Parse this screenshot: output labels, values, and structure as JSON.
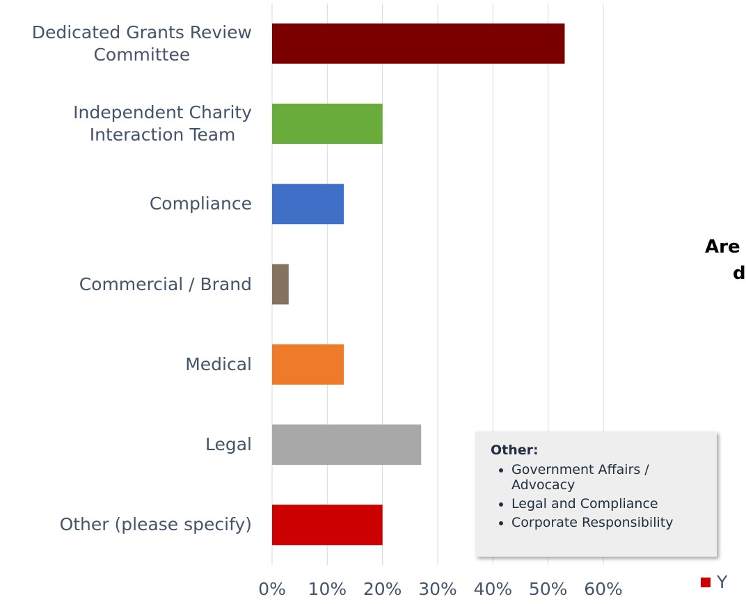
{
  "chart_data": {
    "type": "bar",
    "orientation": "horizontal",
    "categories": [
      "Dedicated Grants Review\nCommittee",
      "Independent Charity\nInteraction Team",
      "Compliance",
      "Commercial / Brand",
      "Medical",
      "Legal",
      "Other (please specify)"
    ],
    "values": [
      53,
      20,
      13,
      3,
      13,
      27,
      20
    ],
    "colors": [
      "#7a0000",
      "#6aac3c",
      "#3f6fc7",
      "#85735f",
      "#ee7a2a",
      "#a8a8a8",
      "#cc0000"
    ],
    "xlim": [
      0,
      60
    ],
    "xticks": [
      {
        "value": 0,
        "label": "0%"
      },
      {
        "value": 10,
        "label": "10%"
      },
      {
        "value": 20,
        "label": "20%"
      },
      {
        "value": 30,
        "label": "30%"
      },
      {
        "value": 40,
        "label": "40%"
      },
      {
        "value": 50,
        "label": "50%"
      },
      {
        "value": 60,
        "label": "60%"
      }
    ],
    "grid": true,
    "annotations": {
      "title": "Other:",
      "items": [
        "Government Affairs /\nAdvocacy",
        "Legal and Compliance",
        "Corporate Responsibility"
      ]
    },
    "partial_title": [
      "Are",
      "d"
    ],
    "legend": {
      "name": "Y",
      "color": "#cc0000"
    }
  }
}
